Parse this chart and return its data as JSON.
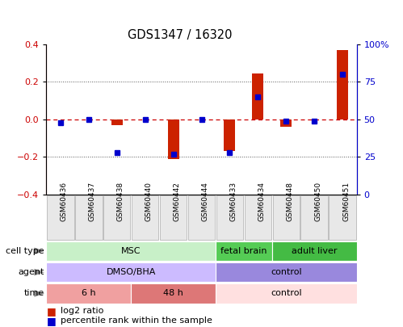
{
  "title": "GDS1347 / 16320",
  "samples": [
    "GSM60436",
    "GSM60437",
    "GSM60438",
    "GSM60440",
    "GSM60442",
    "GSM60444",
    "GSM60433",
    "GSM60434",
    "GSM60448",
    "GSM60450",
    "GSM60451"
  ],
  "log2_ratio": [
    0.0,
    0.0,
    -0.03,
    0.0,
    -0.21,
    0.0,
    -0.17,
    0.245,
    -0.04,
    0.0,
    0.37
  ],
  "percentile": [
    48,
    50,
    28,
    50,
    27,
    50,
    28,
    65,
    49,
    49,
    80
  ],
  "ylim": [
    -0.4,
    0.4
  ],
  "yticks_left": [
    -0.4,
    -0.2,
    0.0,
    0.2,
    0.4
  ],
  "yticks_right": [
    0,
    25,
    50,
    75,
    100
  ],
  "cell_type_groups": [
    {
      "label": "MSC",
      "start": 0,
      "end": 6,
      "color": "#c8f0c8"
    },
    {
      "label": "fetal brain",
      "start": 6,
      "end": 8,
      "color": "#55cc55"
    },
    {
      "label": "adult liver",
      "start": 8,
      "end": 11,
      "color": "#44bb44"
    }
  ],
  "agent_groups": [
    {
      "label": "DMSO/BHA",
      "start": 0,
      "end": 6,
      "color": "#ccbbff"
    },
    {
      "label": "control",
      "start": 6,
      "end": 11,
      "color": "#9988dd"
    }
  ],
  "time_groups": [
    {
      "label": "6 h",
      "start": 0,
      "end": 3,
      "color": "#f0a0a0"
    },
    {
      "label": "48 h",
      "start": 3,
      "end": 6,
      "color": "#dd7777"
    },
    {
      "label": "control",
      "start": 6,
      "end": 11,
      "color": "#ffe0e0"
    }
  ],
  "bar_color": "#cc2200",
  "pct_color": "#0000cc",
  "dotted_line_color": "#555555",
  "zero_line_color": "#cc0000",
  "row_labels": [
    "cell type",
    "agent",
    "time"
  ],
  "legend": [
    "log2 ratio",
    "percentile rank within the sample"
  ],
  "label_color": "#cc0000",
  "right_axis_color": "#0000cc"
}
